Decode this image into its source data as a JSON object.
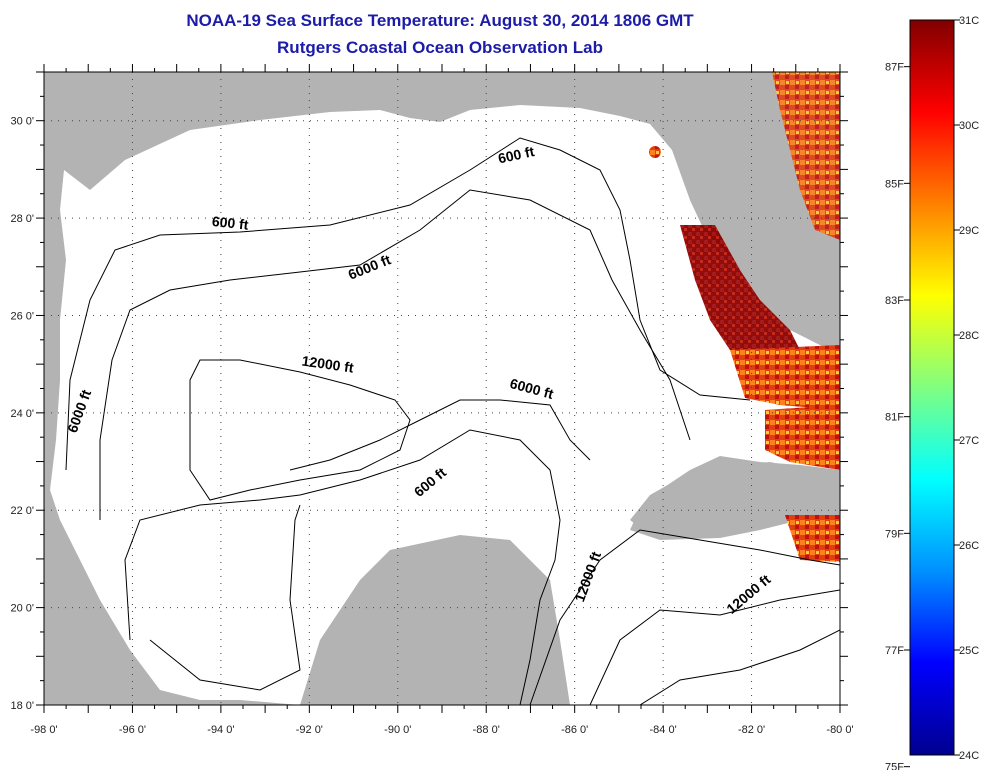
{
  "header": {
    "title": "NOAA-19 Sea Surface Temperature:  August 30, 2014 1806 GMT",
    "subtitle": "Rutgers Coastal Ocean Observation Lab"
  },
  "map": {
    "lon_range": [
      -98,
      -80
    ],
    "lat_range": [
      18,
      31
    ],
    "x_ticks": [
      -98,
      -96,
      -94,
      -92,
      -90,
      -88,
      -86,
      -84,
      -82,
      -80
    ],
    "y_ticks": [
      18,
      20,
      22,
      24,
      26,
      28,
      30
    ],
    "x_tick_labels": [
      "-98 0'",
      "-96 0'",
      "-94 0'",
      "-92 0'",
      "-90 0'",
      "-88 0'",
      "-86 0'",
      "-84 0'",
      "-82 0'",
      "-80 0'"
    ],
    "y_tick_labels": [
      "18 0'",
      "20 0'",
      "22 0'",
      "24 0'",
      "26 0'",
      "28 0'",
      "30 0'"
    ],
    "land_color": "#b3b3b3",
    "water_color": "#ffffff",
    "contour_labels": [
      {
        "text": "600 ft",
        "lon": -93.8,
        "lat": 27.8,
        "rot": 6
      },
      {
        "text": "600 ft",
        "lon": -87.3,
        "lat": 29.2,
        "rot": -12
      },
      {
        "text": "6000 ft",
        "lon": -90.6,
        "lat": 26.9,
        "rot": -22
      },
      {
        "text": "6000 ft",
        "lon": -97.1,
        "lat": 24.0,
        "rot": -70
      },
      {
        "text": "12000 ft",
        "lon": -91.6,
        "lat": 24.9,
        "rot": 8
      },
      {
        "text": "6000 ft",
        "lon": -87.0,
        "lat": 24.4,
        "rot": 15
      },
      {
        "text": "600 ft",
        "lon": -89.2,
        "lat": 22.5,
        "rot": -40
      },
      {
        "text": "12000 ft",
        "lon": -85.6,
        "lat": 20.6,
        "rot": -70
      },
      {
        "text": "12000 ft",
        "lon": -82.0,
        "lat": 20.2,
        "rot": -40
      }
    ]
  },
  "colorbar": {
    "celsius_labels": [
      "31C",
      "30C",
      "29C",
      "28C",
      "27C",
      "26C",
      "25C",
      "24C"
    ],
    "celsius_values": [
      31,
      30,
      29,
      28,
      27,
      26,
      25,
      24
    ],
    "fahrenheit_labels": [
      "87F",
      "85F",
      "83F",
      "81F",
      "79F",
      "77F",
      "75F"
    ],
    "fahrenheit_values": [
      87,
      85,
      83,
      81,
      79,
      77,
      75
    ],
    "min_c": 24,
    "max_c": 31,
    "stops": [
      "#00008f",
      "#0000ff",
      "#0090ff",
      "#00ffff",
      "#80ff80",
      "#ffff00",
      "#ff8000",
      "#ff0000",
      "#800000"
    ]
  }
}
